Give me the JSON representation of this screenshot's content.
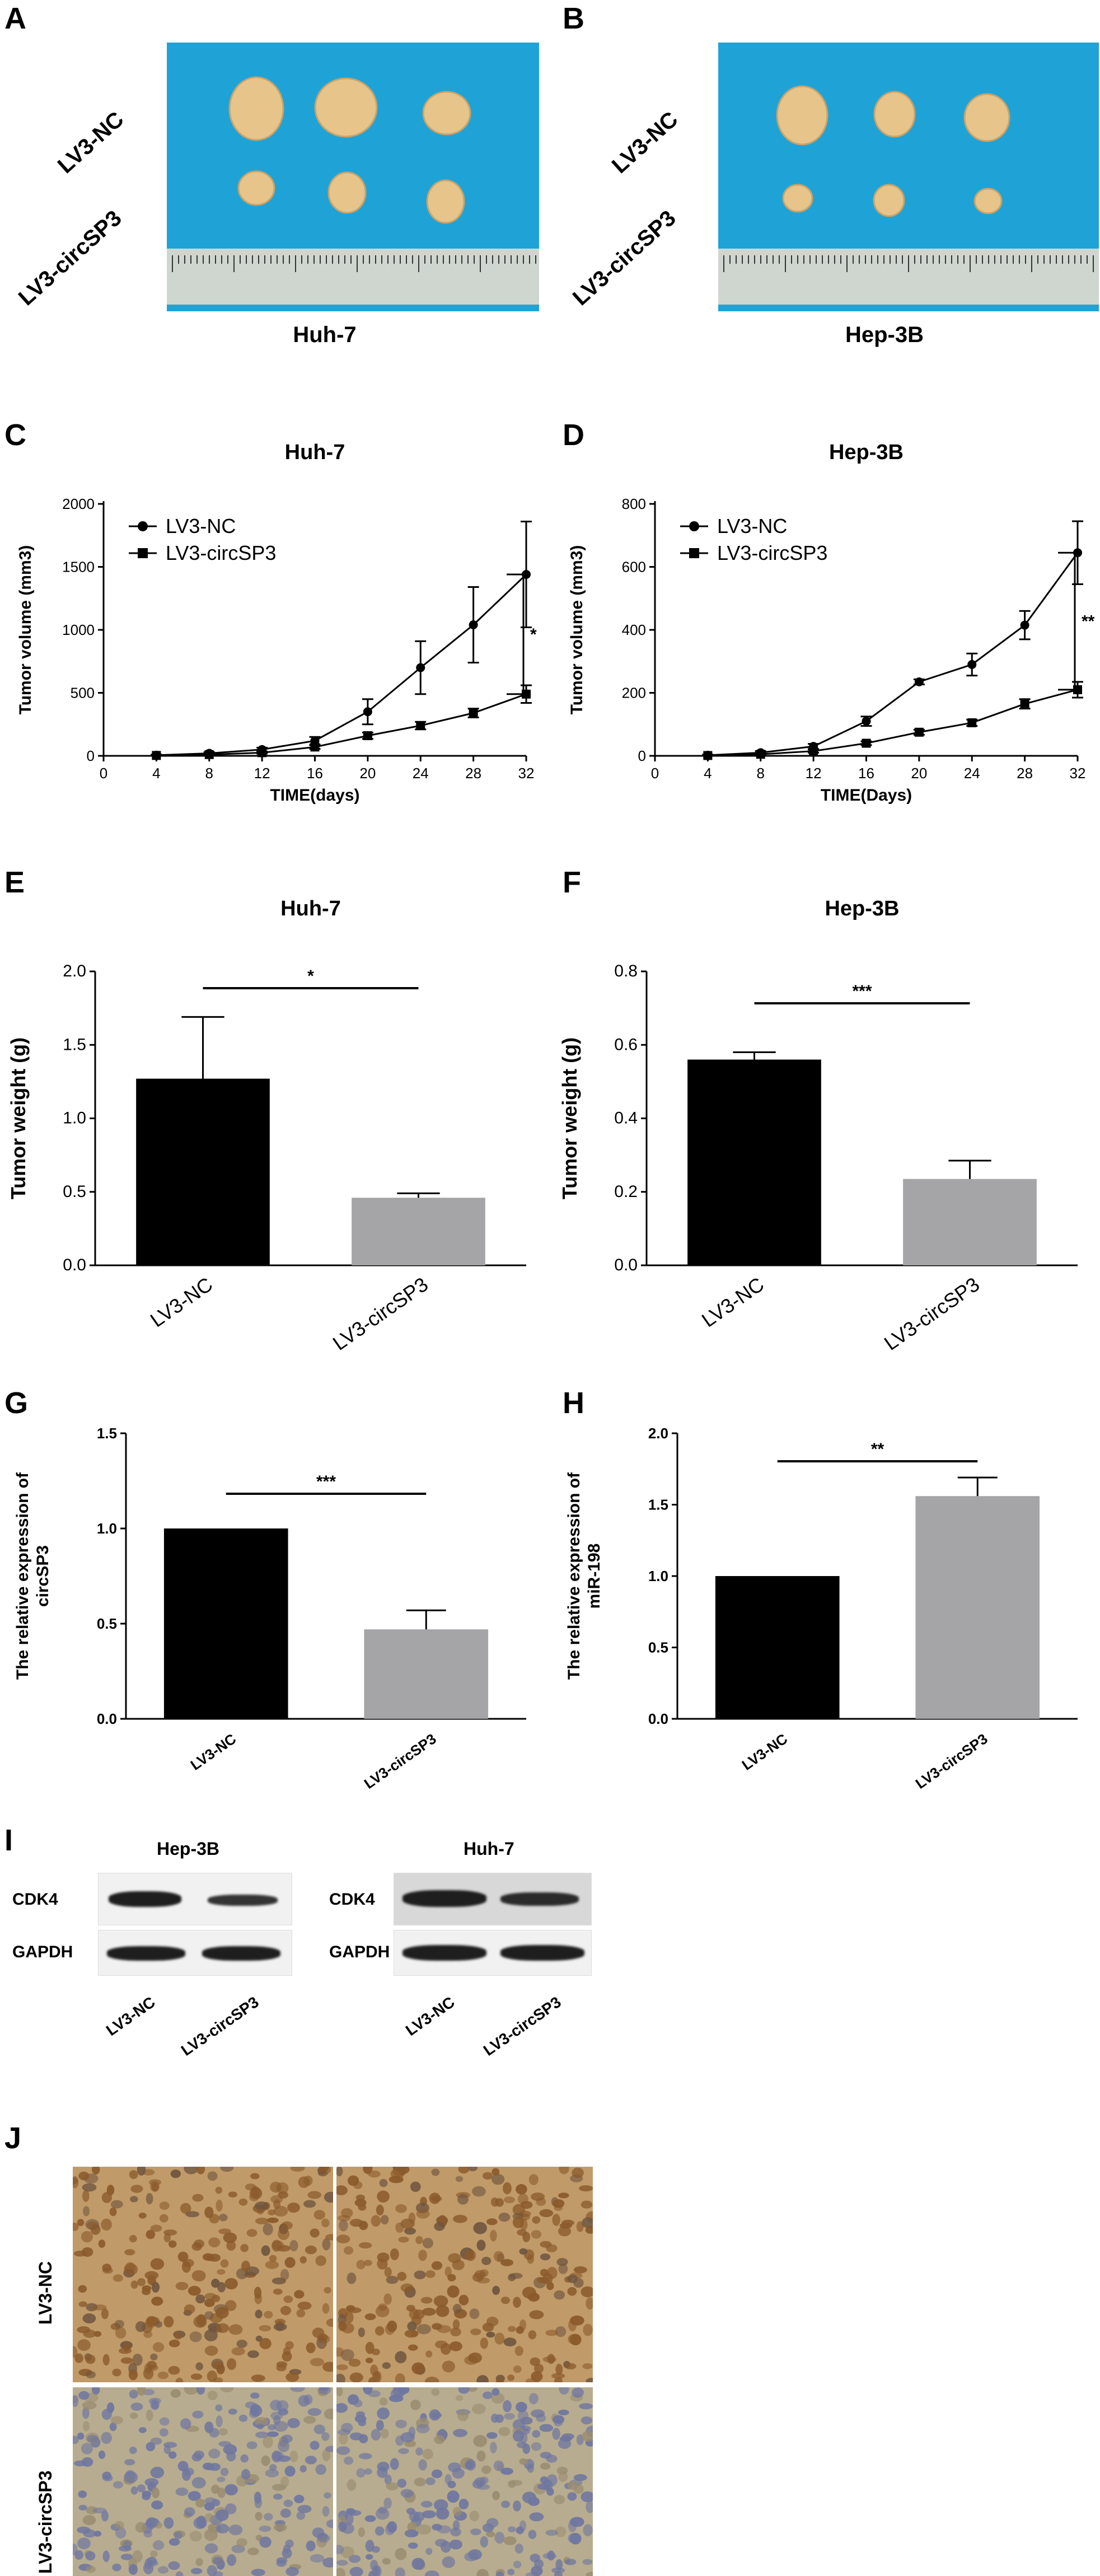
{
  "panel_letters": {
    "A": "A",
    "B": "B",
    "C": "C",
    "D": "D",
    "E": "E",
    "F": "F",
    "G": "G",
    "H": "H",
    "I": "I",
    "J": "J"
  },
  "panel_a": {
    "row_labels": [
      "LV3-NC",
      "LV3-circSP3"
    ],
    "caption": "Huh-7"
  },
  "panel_b": {
    "row_labels": [
      "LV3-NC",
      "LV3-circSP3"
    ],
    "caption": "Hep-3B"
  },
  "colors": {
    "photo_bg": "#1fa3d6",
    "bar_nc": "#000000",
    "bar_circ": "#a5a5a8",
    "tumor": "#e7c48a",
    "ihc_brown": "#8a5a2b",
    "ihc_blue": "#6f76a0"
  },
  "chart_data": [
    {
      "id": "C",
      "type": "line",
      "title": "Huh-7",
      "xlabel": "TIME(days)",
      "ylabel": "Tumor volume (mm3)",
      "x": [
        4,
        8,
        12,
        16,
        20,
        24,
        28,
        32
      ],
      "xlim": [
        0,
        32
      ],
      "ylim": [
        0,
        2000
      ],
      "xticks": [
        0,
        4,
        8,
        12,
        16,
        20,
        24,
        28,
        32
      ],
      "yticks": [
        0,
        500,
        1000,
        1500,
        2000
      ],
      "series": [
        {
          "name": "LV3-NC",
          "marker": "circle",
          "values": [
            5,
            20,
            50,
            120,
            350,
            700,
            1040,
            1440
          ],
          "errors": [
            5,
            10,
            15,
            30,
            100,
            210,
            300,
            420
          ]
        },
        {
          "name": "LV3-circSP3",
          "marker": "square",
          "values": [
            3,
            10,
            25,
            70,
            160,
            240,
            340,
            490
          ],
          "errors": [
            3,
            5,
            8,
            15,
            25,
            30,
            35,
            70
          ]
        }
      ],
      "legend": "top-left",
      "significance": "*"
    },
    {
      "id": "D",
      "type": "line",
      "title": "Hep-3B",
      "xlabel": "TIME(Days)",
      "ylabel": "Tumor volume (mm3)",
      "x": [
        4,
        8,
        12,
        16,
        20,
        24,
        28,
        32
      ],
      "xlim": [
        0,
        32
      ],
      "ylim": [
        0,
        800
      ],
      "xticks": [
        0,
        4,
        8,
        12,
        16,
        20,
        24,
        28,
        32
      ],
      "yticks": [
        0,
        200,
        400,
        600,
        800
      ],
      "series": [
        {
          "name": "LV3-NC",
          "marker": "circle",
          "values": [
            2,
            10,
            30,
            110,
            235,
            290,
            415,
            645
          ],
          "errors": [
            2,
            5,
            8,
            15,
            8,
            35,
            45,
            100
          ]
        },
        {
          "name": "LV3-circSP3",
          "marker": "square",
          "values": [
            1,
            5,
            15,
            40,
            75,
            105,
            165,
            210
          ],
          "errors": [
            1,
            3,
            5,
            6,
            8,
            10,
            15,
            25
          ]
        }
      ],
      "legend": "top-left",
      "significance": "**"
    },
    {
      "id": "E",
      "type": "bar",
      "title": "Huh-7",
      "ylabel": "Tumor weight (g)",
      "categories": [
        "LV3-NC",
        "LV3-circSP3"
      ],
      "values": [
        1.27,
        0.46
      ],
      "errors": [
        0.42,
        0.03
      ],
      "ylim": [
        0,
        2.0
      ],
      "yticks": [
        "0.0",
        "0.5",
        "1.0",
        "1.5",
        "2.0"
      ],
      "significance": "*"
    },
    {
      "id": "F",
      "type": "bar",
      "title": "Hep-3B",
      "ylabel": "Tumor weight (g)",
      "categories": [
        "LV3-NC",
        "LV3-circSP3"
      ],
      "values": [
        0.56,
        0.235
      ],
      "errors": [
        0.02,
        0.05
      ],
      "ylim": [
        0,
        0.8
      ],
      "yticks": [
        "0.0",
        "0.2",
        "0.4",
        "0.6",
        "0.8"
      ],
      "significance": "***"
    },
    {
      "id": "G",
      "type": "bar",
      "title": "",
      "ylabel": "The relative expression of circSP3",
      "ylabel_lines": [
        "The relative expression of",
        "circSP3"
      ],
      "categories": [
        "LV3-NC",
        "LV3-circSP3"
      ],
      "values": [
        1.0,
        0.47
      ],
      "errors": [
        0.0,
        0.1
      ],
      "ylim": [
        0,
        1.5
      ],
      "yticks": [
        "0.0",
        "0.5",
        "1.0",
        "1.5"
      ],
      "significance": "***"
    },
    {
      "id": "H",
      "type": "bar",
      "title": "",
      "ylabel": "The relative expression of miR-198",
      "ylabel_lines": [
        "The relative expression of",
        "miR-198"
      ],
      "categories": [
        "LV3-NC",
        "LV3-circSP3"
      ],
      "values": [
        1.0,
        1.56
      ],
      "errors": [
        0.0,
        0.13
      ],
      "ylim": [
        0,
        2.0
      ],
      "yticks": [
        "0.0",
        "0.5",
        "1.0",
        "1.5",
        "2.0"
      ],
      "significance": "**"
    }
  ],
  "panel_i": {
    "blots": [
      {
        "title": "Hep-3B",
        "rows": [
          "CDK4",
          "GAPDH"
        ],
        "lanes": [
          "LV3-NC",
          "LV3-circSP3"
        ]
      },
      {
        "title": "Huh-7",
        "rows": [
          "CDK4",
          "GAPDH"
        ],
        "lanes": [
          "LV3-NC",
          "LV3-circSP3"
        ]
      }
    ]
  },
  "panel_j": {
    "row_labels": [
      "LV3-NC",
      "LV3-circSP3"
    ]
  }
}
